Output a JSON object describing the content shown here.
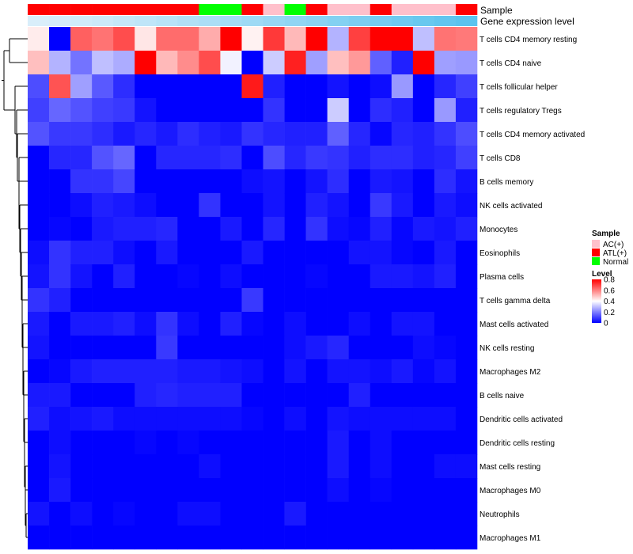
{
  "chart_data": {
    "type": "heatmap",
    "annotation_labels": {
      "sample": "Sample",
      "expression": "Gene expression level"
    },
    "row_labels": [
      "T cells CD4 memory resting",
      "T cells CD4 naive",
      "T cells follicular helper",
      "T cells regulatory  Tregs",
      "T cells CD4 memory activated",
      "T cells CD8",
      "B cells memory",
      "NK cells activated",
      "Monocytes",
      "Eosinophils",
      "Plasma cells",
      "T cells gamma delta",
      "Mast cells activated",
      "NK cells resting",
      "Macrophages M2",
      "B cells naive",
      "Dendritic cells activated",
      "Dendritic cells resting",
      "Mast cells resting",
      "Macrophages M0",
      "Neutrophils",
      "Macrophages M1"
    ],
    "column_samples": [
      "ATL(+)",
      "ATL(+)",
      "ATL(+)",
      "ATL(+)",
      "ATL(+)",
      "ATL(+)",
      "ATL(+)",
      "ATL(+)",
      "Normal",
      "Normal",
      "ATL(+)",
      "AC(+)",
      "Normal",
      "ATL(+)",
      "AC(+)",
      "AC(+)",
      "ATL(+)",
      "AC(+)",
      "AC(+)",
      "AC(+)",
      "ATL(+)"
    ],
    "column_expression_level": [
      0.05,
      0.08,
      0.12,
      0.15,
      0.2,
      0.25,
      0.3,
      0.35,
      0.4,
      0.45,
      0.5,
      0.55,
      0.6,
      0.65,
      0.7,
      0.75,
      0.8,
      0.85,
      0.9,
      0.95,
      1.0
    ],
    "values": [
      [
        0.43,
        0.0,
        0.65,
        0.62,
        0.68,
        0.44,
        0.63,
        0.63,
        0.53,
        0.8,
        0.42,
        0.71,
        0.51,
        0.8,
        0.28,
        0.7,
        0.8,
        0.8,
        0.3,
        0.62,
        0.61
      ],
      [
        0.5,
        0.28,
        0.18,
        0.3,
        0.27,
        0.82,
        0.51,
        0.58,
        0.68,
        0.38,
        0.0,
        0.32,
        0.75,
        0.25,
        0.5,
        0.56,
        0.15,
        0.05,
        0.8,
        0.25,
        0.24
      ],
      [
        0.12,
        0.67,
        0.25,
        0.14,
        0.07,
        0.0,
        0.0,
        0.0,
        0.0,
        0.0,
        0.76,
        0.05,
        0.0,
        0.0,
        0.03,
        0.0,
        0.02,
        0.24,
        0.0,
        0.06,
        0.1
      ],
      [
        0.1,
        0.16,
        0.13,
        0.1,
        0.09,
        0.03,
        0.0,
        0.0,
        0.0,
        0.0,
        0.0,
        0.08,
        0.0,
        0.0,
        0.32,
        0.0,
        0.07,
        0.05,
        0.0,
        0.24,
        0.05
      ],
      [
        0.13,
        0.09,
        0.09,
        0.07,
        0.04,
        0.06,
        0.04,
        0.07,
        0.05,
        0.04,
        0.08,
        0.06,
        0.05,
        0.05,
        0.15,
        0.06,
        0.01,
        0.06,
        0.05,
        0.08,
        0.12
      ],
      [
        0.0,
        0.06,
        0.06,
        0.13,
        0.16,
        0.0,
        0.06,
        0.06,
        0.06,
        0.07,
        0.0,
        0.12,
        0.06,
        0.09,
        0.08,
        0.05,
        0.07,
        0.07,
        0.05,
        0.06,
        0.1
      ],
      [
        0.0,
        0.0,
        0.08,
        0.08,
        0.11,
        0.0,
        0.0,
        0.0,
        0.0,
        0.0,
        0.02,
        0.03,
        0.0,
        0.03,
        0.07,
        0.0,
        0.04,
        0.03,
        0.0,
        0.07,
        0.03
      ],
      [
        0.0,
        0.0,
        0.02,
        0.05,
        0.04,
        0.02,
        0.0,
        0.0,
        0.08,
        0.0,
        0.0,
        0.03,
        0.0,
        0.05,
        0.03,
        0.0,
        0.09,
        0.04,
        0.0,
        0.04,
        0.02
      ],
      [
        0.0,
        0.01,
        0.0,
        0.04,
        0.05,
        0.05,
        0.06,
        0.0,
        0.0,
        0.04,
        0.0,
        0.06,
        0.0,
        0.08,
        0.02,
        0.01,
        0.05,
        0.01,
        0.04,
        0.03,
        0.05
      ],
      [
        0.02,
        0.08,
        0.05,
        0.05,
        0.02,
        0.0,
        0.04,
        0.0,
        0.0,
        0.0,
        0.04,
        0.0,
        0.0,
        0.0,
        0.0,
        0.03,
        0.03,
        0.01,
        0.0,
        0.04,
        0.0
      ],
      [
        0.03,
        0.08,
        0.03,
        0.0,
        0.05,
        0.0,
        0.0,
        0.01,
        0.0,
        0.02,
        0.0,
        0.0,
        0.0,
        0.01,
        0.0,
        0.0,
        0.04,
        0.04,
        0.03,
        0.05,
        0.0
      ],
      [
        0.08,
        0.05,
        0.0,
        0.0,
        0.0,
        0.0,
        0.0,
        0.0,
        0.0,
        0.0,
        0.09,
        0.0,
        0.0,
        0.0,
        0.0,
        0.0,
        0.0,
        0.0,
        0.0,
        0.0,
        0.0
      ],
      [
        0.04,
        0.0,
        0.04,
        0.04,
        0.05,
        0.02,
        0.08,
        0.02,
        0.0,
        0.05,
        0.01,
        0.0,
        0.02,
        0.0,
        0.0,
        0.02,
        0.0,
        0.03,
        0.03,
        0.0,
        0.0
      ],
      [
        0.03,
        0.0,
        0.0,
        0.0,
        0.0,
        0.0,
        0.09,
        0.0,
        0.0,
        0.0,
        0.0,
        0.0,
        0.02,
        0.04,
        0.06,
        0.0,
        0.0,
        0.0,
        0.02,
        0.01,
        0.0
      ],
      [
        0.0,
        0.01,
        0.04,
        0.05,
        0.05,
        0.05,
        0.05,
        0.04,
        0.04,
        0.03,
        0.02,
        0.0,
        0.03,
        0.0,
        0.03,
        0.03,
        0.02,
        0.04,
        0.01,
        0.03,
        0.0
      ],
      [
        0.04,
        0.04,
        0.0,
        0.0,
        0.0,
        0.05,
        0.06,
        0.05,
        0.05,
        0.05,
        0.0,
        0.0,
        0.0,
        0.0,
        0.0,
        0.05,
        0.0,
        0.0,
        0.0,
        0.0,
        0.0
      ],
      [
        0.05,
        0.02,
        0.03,
        0.04,
        0.02,
        0.02,
        0.02,
        0.02,
        0.02,
        0.02,
        0.01,
        0.0,
        0.02,
        0.0,
        0.03,
        0.02,
        0.02,
        0.02,
        0.02,
        0.02,
        0.0
      ],
      [
        0.0,
        0.02,
        0.0,
        0.0,
        0.0,
        0.01,
        0.0,
        0.01,
        0.0,
        0.0,
        0.0,
        0.0,
        0.0,
        0.0,
        0.04,
        0.0,
        0.02,
        0.0,
        0.0,
        0.0,
        0.0
      ],
      [
        0.0,
        0.03,
        0.0,
        0.0,
        0.0,
        0.0,
        0.0,
        0.0,
        0.02,
        0.0,
        0.0,
        0.0,
        0.0,
        0.0,
        0.04,
        0.0,
        0.02,
        0.0,
        0.0,
        0.02,
        0.02
      ],
      [
        0.0,
        0.04,
        0.0,
        0.0,
        0.0,
        0.0,
        0.0,
        0.0,
        0.0,
        0.0,
        0.0,
        0.0,
        0.0,
        0.0,
        0.02,
        0.0,
        0.01,
        0.0,
        0.0,
        0.0,
        0.0
      ],
      [
        0.03,
        0.0,
        0.02,
        0.0,
        0.01,
        0.0,
        0.0,
        0.02,
        0.02,
        0.0,
        0.0,
        0.0,
        0.04,
        0.0,
        0.0,
        0.0,
        0.0,
        0.0,
        0.0,
        0.0,
        0.0
      ],
      [
        0.0,
        0.0,
        0.0,
        0.0,
        0.0,
        0.0,
        0.0,
        0.0,
        0.0,
        0.0,
        0.0,
        0.0,
        0.0,
        0.0,
        0.0,
        0.0,
        0.0,
        0.0,
        0.0,
        0.0,
        0.0
      ]
    ],
    "color_range": [
      0,
      0.8
    ],
    "legend": {
      "sample_title": "Sample",
      "sample_entries": [
        {
          "label": "AC(+)",
          "color": "#ffc0cb"
        },
        {
          "label": "ATL(+)",
          "color": "#ff0000"
        },
        {
          "label": "Normal",
          "color": "#00ff00"
        }
      ],
      "level_title": "Level",
      "level_ticks": [
        {
          "label": "0.8",
          "value": 0.8
        },
        {
          "label": "0.6",
          "value": 0.6
        },
        {
          "label": "0.4",
          "value": 0.4
        },
        {
          "label": "0.2",
          "value": 0.2
        },
        {
          "label": "0",
          "value": 0
        }
      ]
    },
    "dendrogram": "hierarchical clustering of rows (left side)"
  },
  "colors": {
    "low": "#0000ff",
    "mid": "#ffffff",
    "high": "#ff0000",
    "expr_low": "#e0f0fb",
    "expr_high": "#5bc3ee"
  }
}
